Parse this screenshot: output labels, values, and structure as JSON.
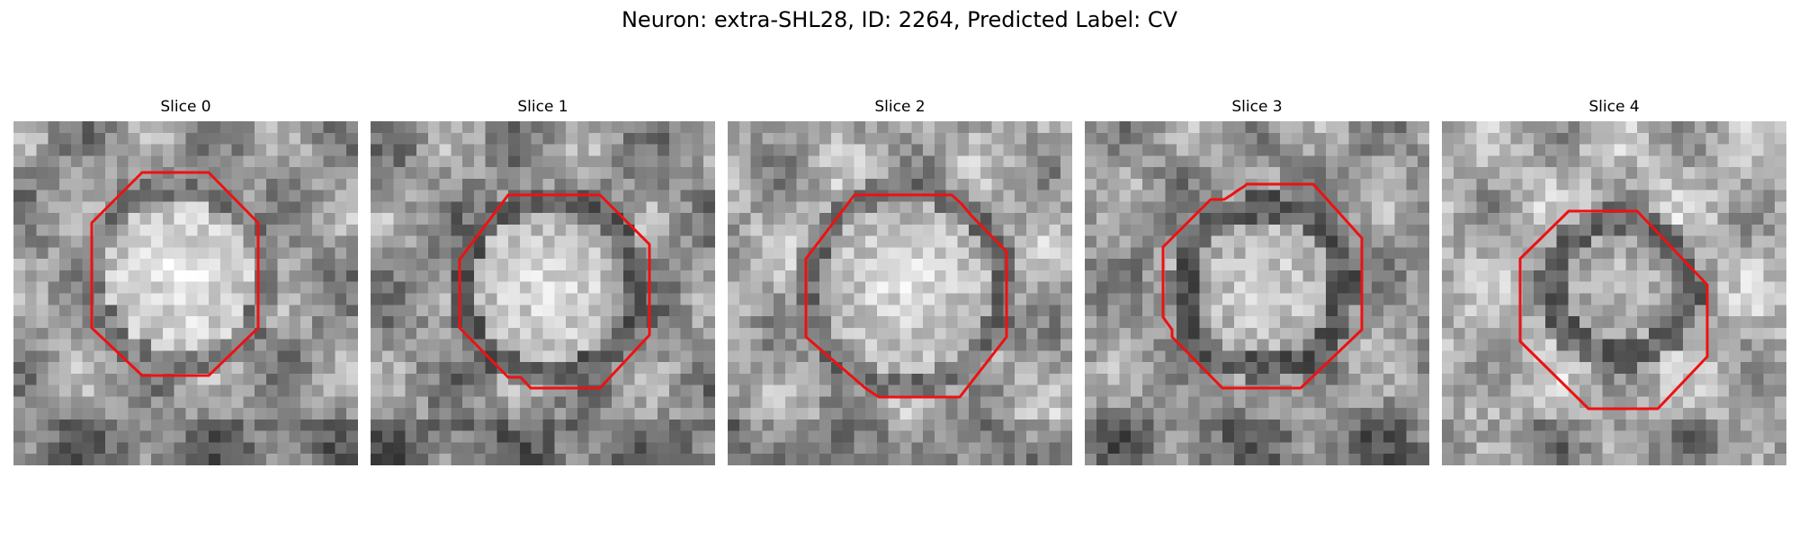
{
  "figure": {
    "title": "Neuron: extra-SHL28, ID: 2264, Predicted Label: CV",
    "contour_color": "#ee1111",
    "colormap": "gray"
  },
  "panels": [
    {
      "title": "Slice 0"
    },
    {
      "title": "Slice 1"
    },
    {
      "title": "Slice 2"
    },
    {
      "title": "Slice 3"
    },
    {
      "title": "Slice 4"
    }
  ]
}
